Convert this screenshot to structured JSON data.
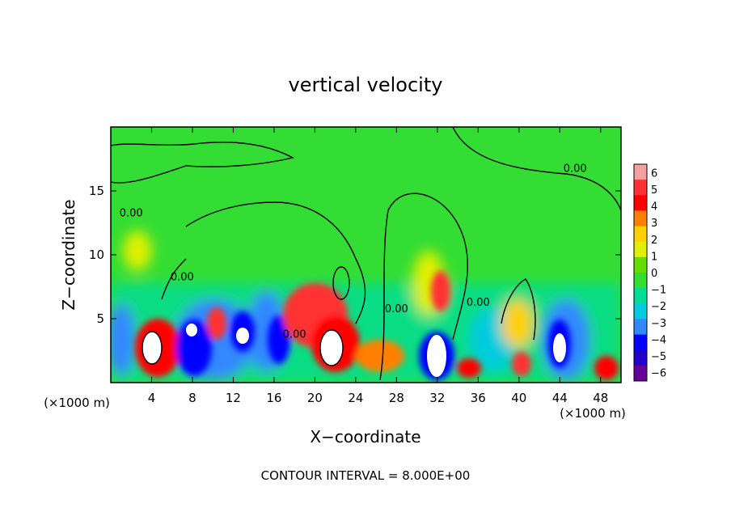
{
  "chart_data": {
    "type": "heatmap",
    "title": "vertical velocity",
    "xlabel": "X−coordinate",
    "ylabel": "Z−coordinate",
    "x_unit_left": "(×1000 m)",
    "x_unit_right": "(×1000 m)",
    "xlim": [
      0,
      50
    ],
    "ylim": [
      0,
      20
    ],
    "x_ticks": [
      4,
      8,
      12,
      16,
      20,
      24,
      28,
      32,
      36,
      40,
      44,
      48
    ],
    "y_ticks": [
      5,
      10,
      15
    ],
    "colorbar": {
      "ticks": [
        "6",
        "5",
        "4",
        "3",
        "2",
        "1",
        "0",
        "−1",
        "−2",
        "−3",
        "−4",
        "−5",
        "−6"
      ],
      "colors": [
        "#f4a0a0",
        "#ff3333",
        "#ff0000",
        "#ff8000",
        "#ffd000",
        "#e0f000",
        "#66dd00",
        "#33dd33",
        "#00dd99",
        "#00ccdd",
        "#3388ff",
        "#0000ff",
        "#2200cc",
        "#660099"
      ]
    },
    "contour_labels": [
      {
        "text": "0.00",
        "x": 2.0,
        "y": 13.0
      },
      {
        "text": "0.00",
        "x": 7.0,
        "y": 8.0
      },
      {
        "text": "0.00",
        "x": 18.0,
        "y": 3.5
      },
      {
        "text": "0.00",
        "x": 28.0,
        "y": 5.5
      },
      {
        "text": "0.00",
        "x": 36.0,
        "y": 6.0
      },
      {
        "text": "0.00",
        "x": 45.5,
        "y": 16.5
      }
    ],
    "footer": "CONTOUR INTERVAL = 8.000E+00"
  }
}
